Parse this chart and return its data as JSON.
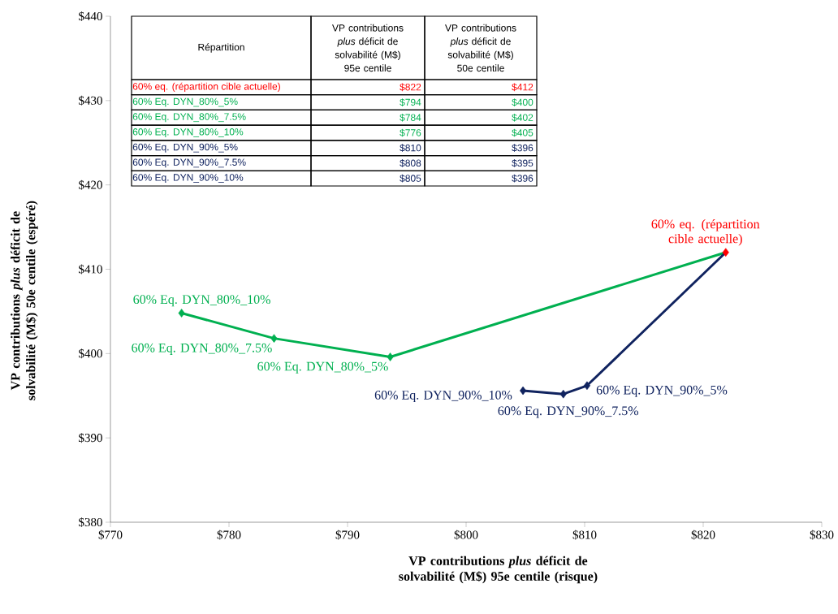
{
  "chart_data": {
    "type": "scatter",
    "xlabel": "VP contributions *plus* déficit de solvabilité (M$) 95e centile (risque)",
    "ylabel": "VP contributions *plus* déficit de solvabilité (M$) 50e centile (espéré)",
    "xlim": [
      770,
      830
    ],
    "ylim": [
      380,
      440
    ],
    "xticks": [
      {
        "value": 770,
        "label": "$770"
      },
      {
        "value": 780,
        "label": "$780"
      },
      {
        "value": 790,
        "label": "$790"
      },
      {
        "value": 800,
        "label": "$800"
      },
      {
        "value": 810,
        "label": "$810"
      },
      {
        "value": 820,
        "label": "$820"
      },
      {
        "value": 830,
        "label": "$830"
      }
    ],
    "yticks": [
      {
        "value": 380,
        "label": "$380"
      },
      {
        "value": 390,
        "label": "$390"
      },
      {
        "value": 400,
        "label": "$400"
      },
      {
        "value": 410,
        "label": "$410"
      },
      {
        "value": 420,
        "label": "$420"
      },
      {
        "value": 430,
        "label": "$430"
      },
      {
        "value": 440,
        "label": "$440"
      }
    ],
    "marker": "diamond",
    "series": [
      {
        "type": "line",
        "marker": "none",
        "color": "#00b050",
        "x": [
          776.0,
          783.8,
          793.6,
          821.9
        ],
        "values": [
          404.8,
          401.8,
          399.6,
          412.0
        ]
      },
      {
        "type": "line",
        "marker": "none",
        "color": "#10235f",
        "x": [
          804.8,
          808.2,
          810.2,
          821.9
        ],
        "values": [
          395.6,
          395.2,
          396.2,
          412.0
        ]
      },
      {
        "name": "60% eq. (répartition cible actuelle)",
        "color": "#ff0000",
        "x": [
          821.9
        ],
        "values": [
          412.0
        ]
      },
      {
        "name": "60% Eq. DYN_80%_5%",
        "color": "#00b050",
        "x": [
          793.6
        ],
        "values": [
          399.6
        ]
      },
      {
        "name": "60% Eq. DYN_80%_7.5%",
        "color": "#00b050",
        "x": [
          783.8
        ],
        "values": [
          401.8
        ]
      },
      {
        "name": "60% Eq. DYN_80%_10%",
        "color": "#00b050",
        "x": [
          776.0
        ],
        "values": [
          404.8
        ]
      },
      {
        "name": "60% Eq. DYN_90%_5%",
        "color": "#10235f",
        "x": [
          810.2
        ],
        "values": [
          396.2
        ]
      },
      {
        "name": "60% Eq. DYN_90%_7.5%",
        "color": "#10235f",
        "x": [
          808.2
        ],
        "values": [
          395.2
        ]
      },
      {
        "name": "60% Eq. DYN_90%_10%",
        "color": "#10235f",
        "x": [
          804.8
        ],
        "values": [
          395.6
        ]
      }
    ],
    "annotations": [
      "Répartition",
      "VP contributions *plus* déficit de solvabilité (M$) 95e centile",
      "VP contributions *plus* déficit de solvabilité (M$) 50e centile",
      "$822",
      "$412",
      "$794",
      "$400",
      "$784",
      "$402",
      "$776",
      "$405",
      "$810",
      "$396",
      "$808",
      "$395",
      "$805",
      "$396"
    ]
  }
}
